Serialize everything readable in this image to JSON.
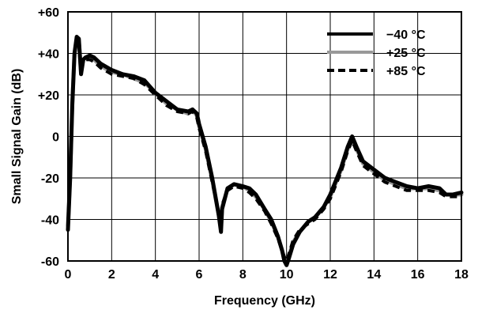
{
  "chart_data": {
    "type": "line",
    "title": "",
    "xlabel": "Frequency (GHz)",
    "ylabel": "Small Signal Gain (dB)",
    "xlim": [
      0,
      18
    ],
    "ylim": [
      -60,
      60
    ],
    "x_ticks": [
      "0",
      "2",
      "4",
      "6",
      "8",
      "10",
      "12",
      "14",
      "16",
      "18"
    ],
    "y_ticks": [
      "+60",
      "+40",
      "+20",
      "0",
      "-20",
      "-40",
      "-60"
    ],
    "grid": true,
    "legend_position": "top-right",
    "series": [
      {
        "name": "−40 °C",
        "color": "#000000",
        "dash": "solid",
        "points": [
          [
            0.0,
            -45
          ],
          [
            0.1,
            -20
          ],
          [
            0.2,
            15
          ],
          [
            0.3,
            40
          ],
          [
            0.4,
            48
          ],
          [
            0.5,
            47
          ],
          [
            0.6,
            30
          ],
          [
            0.7,
            37
          ],
          [
            0.8,
            38
          ],
          [
            1.0,
            39
          ],
          [
            1.2,
            38
          ],
          [
            1.5,
            35
          ],
          [
            2.0,
            32
          ],
          [
            2.5,
            30
          ],
          [
            3.0,
            29
          ],
          [
            3.5,
            27
          ],
          [
            4.0,
            21
          ],
          [
            4.5,
            17
          ],
          [
            5.0,
            13
          ],
          [
            5.5,
            12
          ],
          [
            5.7,
            13
          ],
          [
            5.9,
            11
          ],
          [
            6.0,
            6
          ],
          [
            6.3,
            -5
          ],
          [
            6.6,
            -20
          ],
          [
            6.9,
            -38
          ],
          [
            7.0,
            -46
          ],
          [
            7.05,
            -35
          ],
          [
            7.3,
            -25
          ],
          [
            7.6,
            -23
          ],
          [
            8.0,
            -24
          ],
          [
            8.3,
            -25
          ],
          [
            8.6,
            -28
          ],
          [
            9.0,
            -35
          ],
          [
            9.3,
            -40
          ],
          [
            9.6,
            -48
          ],
          [
            9.8,
            -55
          ],
          [
            9.9,
            -60
          ],
          [
            10.0,
            -62
          ],
          [
            10.1,
            -59
          ],
          [
            10.3,
            -52
          ],
          [
            10.6,
            -46
          ],
          [
            11.0,
            -41
          ],
          [
            11.3,
            -39
          ],
          [
            11.7,
            -34
          ],
          [
            12.0,
            -28
          ],
          [
            12.5,
            -15
          ],
          [
            12.8,
            -5
          ],
          [
            13.0,
            0
          ],
          [
            13.2,
            -5
          ],
          [
            13.5,
            -12
          ],
          [
            14.0,
            -16
          ],
          [
            14.5,
            -20
          ],
          [
            15.0,
            -22
          ],
          [
            15.5,
            -24
          ],
          [
            16.0,
            -25
          ],
          [
            16.5,
            -24
          ],
          [
            17.0,
            -25
          ],
          [
            17.3,
            -28
          ],
          [
            17.6,
            -28
          ],
          [
            18.0,
            -27
          ]
        ]
      },
      {
        "name": "+25 °C",
        "color": "#999999",
        "dash": "solid",
        "points": [
          [
            0.0,
            -43
          ],
          [
            0.1,
            -18
          ],
          [
            0.2,
            16
          ],
          [
            0.3,
            40
          ],
          [
            0.4,
            47
          ],
          [
            0.5,
            46
          ],
          [
            0.6,
            31
          ],
          [
            0.7,
            37
          ],
          [
            0.8,
            38
          ],
          [
            1.0,
            38
          ],
          [
            1.2,
            37
          ],
          [
            1.5,
            34
          ],
          [
            2.0,
            31
          ],
          [
            2.5,
            30
          ],
          [
            3.0,
            28
          ],
          [
            3.5,
            26
          ],
          [
            4.0,
            21
          ],
          [
            4.5,
            16
          ],
          [
            5.0,
            13
          ],
          [
            5.5,
            11
          ],
          [
            5.7,
            13
          ],
          [
            5.9,
            10
          ],
          [
            6.0,
            5
          ],
          [
            6.3,
            -6
          ],
          [
            6.6,
            -21
          ],
          [
            6.9,
            -38
          ],
          [
            7.0,
            -44
          ],
          [
            7.05,
            -34
          ],
          [
            7.3,
            -25
          ],
          [
            7.6,
            -23
          ],
          [
            8.0,
            -24
          ],
          [
            8.3,
            -26
          ],
          [
            8.6,
            -29
          ],
          [
            9.0,
            -35
          ],
          [
            9.3,
            -41
          ],
          [
            9.6,
            -48
          ],
          [
            9.8,
            -55
          ],
          [
            9.9,
            -59
          ],
          [
            10.0,
            -61
          ],
          [
            10.1,
            -58
          ],
          [
            10.3,
            -51
          ],
          [
            10.6,
            -46
          ],
          [
            11.0,
            -41
          ],
          [
            11.3,
            -39
          ],
          [
            11.7,
            -34
          ],
          [
            12.0,
            -29
          ],
          [
            12.5,
            -16
          ],
          [
            12.8,
            -6
          ],
          [
            13.0,
            -1
          ],
          [
            13.2,
            -6
          ],
          [
            13.5,
            -13
          ],
          [
            14.0,
            -17
          ],
          [
            14.5,
            -21
          ],
          [
            15.0,
            -23
          ],
          [
            15.5,
            -25
          ],
          [
            16.0,
            -25
          ],
          [
            16.5,
            -25
          ],
          [
            17.0,
            -26
          ],
          [
            17.3,
            -28
          ],
          [
            17.6,
            -28
          ],
          [
            18.0,
            -28
          ]
        ]
      },
      {
        "name": "+85 °C",
        "color": "#000000",
        "dash": "dashed",
        "points": [
          [
            0.0,
            -42
          ],
          [
            0.1,
            -17
          ],
          [
            0.2,
            17
          ],
          [
            0.3,
            39
          ],
          [
            0.4,
            46
          ],
          [
            0.5,
            45
          ],
          [
            0.6,
            32
          ],
          [
            0.7,
            36
          ],
          [
            0.8,
            37
          ],
          [
            1.0,
            37
          ],
          [
            1.2,
            36
          ],
          [
            1.5,
            33
          ],
          [
            2.0,
            30
          ],
          [
            2.5,
            29
          ],
          [
            3.0,
            28
          ],
          [
            3.5,
            25
          ],
          [
            4.0,
            20
          ],
          [
            4.5,
            15
          ],
          [
            5.0,
            12
          ],
          [
            5.5,
            11
          ],
          [
            5.7,
            12
          ],
          [
            5.9,
            9
          ],
          [
            6.0,
            4
          ],
          [
            6.3,
            -7
          ],
          [
            6.6,
            -22
          ],
          [
            6.9,
            -37
          ],
          [
            7.0,
            -42
          ],
          [
            7.05,
            -33
          ],
          [
            7.3,
            -26
          ],
          [
            7.6,
            -24
          ],
          [
            8.0,
            -25
          ],
          [
            8.3,
            -27
          ],
          [
            8.6,
            -30
          ],
          [
            9.0,
            -36
          ],
          [
            9.3,
            -42
          ],
          [
            9.6,
            -49
          ],
          [
            9.8,
            -55
          ],
          [
            9.9,
            -58
          ],
          [
            10.0,
            -60
          ],
          [
            10.1,
            -57
          ],
          [
            10.3,
            -50
          ],
          [
            10.6,
            -45
          ],
          [
            11.0,
            -42
          ],
          [
            11.3,
            -40
          ],
          [
            11.7,
            -35
          ],
          [
            12.0,
            -30
          ],
          [
            12.5,
            -17
          ],
          [
            12.8,
            -7
          ],
          [
            13.0,
            -2
          ],
          [
            13.2,
            -7
          ],
          [
            13.5,
            -14
          ],
          [
            14.0,
            -18
          ],
          [
            14.5,
            -22
          ],
          [
            15.0,
            -24
          ],
          [
            15.5,
            -26
          ],
          [
            16.0,
            -26
          ],
          [
            16.5,
            -26
          ],
          [
            17.0,
            -27
          ],
          [
            17.3,
            -29
          ],
          [
            17.6,
            -29
          ],
          [
            18.0,
            -29
          ]
        ]
      }
    ]
  }
}
